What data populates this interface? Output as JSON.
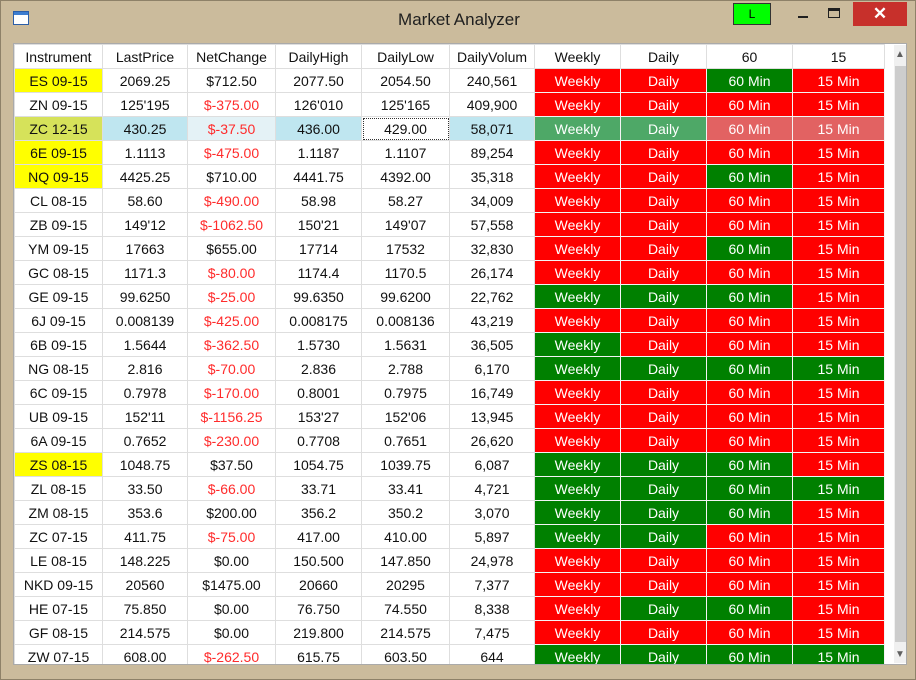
{
  "window": {
    "title": "Market Analyzer",
    "l_button_label": "L",
    "close_label": "✕"
  },
  "table": {
    "columns": [
      "Instrument",
      "LastPrice",
      "NetChange",
      "DailyHigh",
      "DailyLow",
      "DailyVolum",
      "Weekly",
      "Daily",
      "60",
      "15"
    ],
    "rows": [
      {
        "instrument": "ES 09-15",
        "last": "2069.25",
        "net": "$712.50",
        "high": "2077.50",
        "low": "2054.50",
        "vol": "240,561",
        "w": "Weekly",
        "wc": "red",
        "d": "Daily",
        "dc": "red",
        "h": "60 Min",
        "hc": "green",
        "q": "15 Min",
        "qc": "red",
        "highlight": true,
        "neg": false
      },
      {
        "instrument": "ZN 09-15",
        "last": "125'195",
        "net": "$-375.00",
        "high": "126'010",
        "low": "125'165",
        "vol": "409,900",
        "w": "Weekly",
        "wc": "red",
        "d": "Daily",
        "dc": "red",
        "h": "60 Min",
        "hc": "red",
        "q": "15 Min",
        "qc": "red",
        "highlight": false,
        "neg": true
      },
      {
        "instrument": "ZC 12-15",
        "last": "430.25",
        "net": "$-37.50",
        "high": "436.00",
        "low": "429.00",
        "vol": "58,071",
        "w": "Weekly",
        "wc": "green",
        "d": "Daily",
        "dc": "green",
        "h": "60 Min",
        "hc": "red",
        "q": "15 Min",
        "qc": "red",
        "highlight": true,
        "neg": true,
        "selected": true
      },
      {
        "instrument": "6E 09-15",
        "last": "1.1113",
        "net": "$-475.00",
        "high": "1.1187",
        "low": "1.1107",
        "vol": "89,254",
        "w": "Weekly",
        "wc": "red",
        "d": "Daily",
        "dc": "red",
        "h": "60 Min",
        "hc": "red",
        "q": "15 Min",
        "qc": "red",
        "highlight": true,
        "neg": true
      },
      {
        "instrument": "NQ 09-15",
        "last": "4425.25",
        "net": "$710.00",
        "high": "4441.75",
        "low": "4392.00",
        "vol": "35,318",
        "w": "Weekly",
        "wc": "red",
        "d": "Daily",
        "dc": "red",
        "h": "60 Min",
        "hc": "green",
        "q": "15 Min",
        "qc": "red",
        "highlight": true,
        "neg": false
      },
      {
        "instrument": "CL 08-15",
        "last": "58.60",
        "net": "$-490.00",
        "high": "58.98",
        "low": "58.27",
        "vol": "34,009",
        "w": "Weekly",
        "wc": "red",
        "d": "Daily",
        "dc": "red",
        "h": "60 Min",
        "hc": "red",
        "q": "15 Min",
        "qc": "red",
        "highlight": false,
        "neg": true
      },
      {
        "instrument": "ZB 09-15",
        "last": "149'12",
        "net": "$-1062.50",
        "high": "150'21",
        "low": "149'07",
        "vol": "57,558",
        "w": "Weekly",
        "wc": "red",
        "d": "Daily",
        "dc": "red",
        "h": "60 Min",
        "hc": "red",
        "q": "15 Min",
        "qc": "red",
        "highlight": false,
        "neg": true
      },
      {
        "instrument": "YM 09-15",
        "last": "17663",
        "net": "$655.00",
        "high": "17714",
        "low": "17532",
        "vol": "32,830",
        "w": "Weekly",
        "wc": "red",
        "d": "Daily",
        "dc": "red",
        "h": "60 Min",
        "hc": "green",
        "q": "15 Min",
        "qc": "red",
        "highlight": false,
        "neg": false
      },
      {
        "instrument": "GC 08-15",
        "last": "1171.3",
        "net": "$-80.00",
        "high": "1174.4",
        "low": "1170.5",
        "vol": "26,174",
        "w": "Weekly",
        "wc": "red",
        "d": "Daily",
        "dc": "red",
        "h": "60 Min",
        "hc": "red",
        "q": "15 Min",
        "qc": "red",
        "highlight": false,
        "neg": true
      },
      {
        "instrument": "GE 09-15",
        "last": "99.6250",
        "net": "$-25.00",
        "high": "99.6350",
        "low": "99.6200",
        "vol": "22,762",
        "w": "Weekly",
        "wc": "green",
        "d": "Daily",
        "dc": "green",
        "h": "60 Min",
        "hc": "green",
        "q": "15 Min",
        "qc": "red",
        "highlight": false,
        "neg": true
      },
      {
        "instrument": "6J 09-15",
        "last": "0.008139",
        "net": "$-425.00",
        "high": "0.008175",
        "low": "0.008136",
        "vol": "43,219",
        "w": "Weekly",
        "wc": "red",
        "d": "Daily",
        "dc": "red",
        "h": "60 Min",
        "hc": "red",
        "q": "15 Min",
        "qc": "red",
        "highlight": false,
        "neg": true
      },
      {
        "instrument": "6B 09-15",
        "last": "1.5644",
        "net": "$-362.50",
        "high": "1.5730",
        "low": "1.5631",
        "vol": "36,505",
        "w": "Weekly",
        "wc": "green",
        "d": "Daily",
        "dc": "red",
        "h": "60 Min",
        "hc": "red",
        "q": "15 Min",
        "qc": "red",
        "highlight": false,
        "neg": true
      },
      {
        "instrument": "NG 08-15",
        "last": "2.816",
        "net": "$-70.00",
        "high": "2.836",
        "low": "2.788",
        "vol": "6,170",
        "w": "Weekly",
        "wc": "green",
        "d": "Daily",
        "dc": "green",
        "h": "60 Min",
        "hc": "green",
        "q": "15 Min",
        "qc": "green",
        "highlight": false,
        "neg": true
      },
      {
        "instrument": "6C 09-15",
        "last": "0.7978",
        "net": "$-170.00",
        "high": "0.8001",
        "low": "0.7975",
        "vol": "16,749",
        "w": "Weekly",
        "wc": "red",
        "d": "Daily",
        "dc": "red",
        "h": "60 Min",
        "hc": "red",
        "q": "15 Min",
        "qc": "red",
        "highlight": false,
        "neg": true
      },
      {
        "instrument": "UB 09-15",
        "last": "152'11",
        "net": "$-1156.25",
        "high": "153'27",
        "low": "152'06",
        "vol": "13,945",
        "w": "Weekly",
        "wc": "red",
        "d": "Daily",
        "dc": "red",
        "h": "60 Min",
        "hc": "red",
        "q": "15 Min",
        "qc": "red",
        "highlight": false,
        "neg": true
      },
      {
        "instrument": "6A 09-15",
        "last": "0.7652",
        "net": "$-230.00",
        "high": "0.7708",
        "low": "0.7651",
        "vol": "26,620",
        "w": "Weekly",
        "wc": "red",
        "d": "Daily",
        "dc": "red",
        "h": "60 Min",
        "hc": "red",
        "q": "15 Min",
        "qc": "red",
        "highlight": false,
        "neg": true
      },
      {
        "instrument": "ZS 08-15",
        "last": "1048.75",
        "net": "$37.50",
        "high": "1054.75",
        "low": "1039.75",
        "vol": "6,087",
        "w": "Weekly",
        "wc": "green",
        "d": "Daily",
        "dc": "green",
        "h": "60 Min",
        "hc": "green",
        "q": "15 Min",
        "qc": "red",
        "highlight": true,
        "neg": false
      },
      {
        "instrument": "ZL 08-15",
        "last": "33.50",
        "net": "$-66.00",
        "high": "33.71",
        "low": "33.41",
        "vol": "4,721",
        "w": "Weekly",
        "wc": "green",
        "d": "Daily",
        "dc": "green",
        "h": "60 Min",
        "hc": "green",
        "q": "15 Min",
        "qc": "green",
        "highlight": false,
        "neg": true
      },
      {
        "instrument": "ZM 08-15",
        "last": "353.6",
        "net": "$200.00",
        "high": "356.2",
        "low": "350.2",
        "vol": "3,070",
        "w": "Weekly",
        "wc": "green",
        "d": "Daily",
        "dc": "green",
        "h": "60 Min",
        "hc": "green",
        "q": "15 Min",
        "qc": "red",
        "highlight": false,
        "neg": false
      },
      {
        "instrument": "ZC 07-15",
        "last": "411.75",
        "net": "$-75.00",
        "high": "417.00",
        "low": "410.00",
        "vol": "5,897",
        "w": "Weekly",
        "wc": "green",
        "d": "Daily",
        "dc": "green",
        "h": "60 Min",
        "hc": "red",
        "q": "15 Min",
        "qc": "red",
        "highlight": false,
        "neg": true
      },
      {
        "instrument": "LE 08-15",
        "last": "148.225",
        "net": "$0.00",
        "high": "150.500",
        "low": "147.850",
        "vol": "24,978",
        "w": "Weekly",
        "wc": "red",
        "d": "Daily",
        "dc": "red",
        "h": "60 Min",
        "hc": "red",
        "q": "15 Min",
        "qc": "red",
        "highlight": false,
        "neg": false
      },
      {
        "instrument": "NKD 09-15",
        "last": "20560",
        "net": "$1475.00",
        "high": "20660",
        "low": "20295",
        "vol": "7,377",
        "w": "Weekly",
        "wc": "red",
        "d": "Daily",
        "dc": "red",
        "h": "60 Min",
        "hc": "red",
        "q": "15 Min",
        "qc": "red",
        "highlight": false,
        "neg": false
      },
      {
        "instrument": "HE 07-15",
        "last": "75.850",
        "net": "$0.00",
        "high": "76.750",
        "low": "74.550",
        "vol": "8,338",
        "w": "Weekly",
        "wc": "red",
        "d": "Daily",
        "dc": "green",
        "h": "60 Min",
        "hc": "green",
        "q": "15 Min",
        "qc": "red",
        "highlight": false,
        "neg": false
      },
      {
        "instrument": "GF 08-15",
        "last": "214.575",
        "net": "$0.00",
        "high": "219.800",
        "low": "214.575",
        "vol": "7,475",
        "w": "Weekly",
        "wc": "red",
        "d": "Daily",
        "dc": "red",
        "h": "60 Min",
        "hc": "red",
        "q": "15 Min",
        "qc": "red",
        "highlight": false,
        "neg": false
      },
      {
        "instrument": "ZW 07-15",
        "last": "608.00",
        "net": "$-262.50",
        "high": "615.75",
        "low": "603.50",
        "vol": "644",
        "w": "Weekly",
        "wc": "green",
        "d": "Daily",
        "dc": "green",
        "h": "60 Min",
        "hc": "green",
        "q": "15 Min",
        "qc": "green",
        "highlight": false,
        "neg": true
      }
    ]
  },
  "colors": {
    "signal_red": "#ff0000",
    "signal_green": "#008000",
    "highlight_yellow": "#ffff00",
    "negative_text": "#ff2b2b"
  },
  "scrollbar": {
    "up_icon": "▲",
    "down_icon": "▼"
  }
}
